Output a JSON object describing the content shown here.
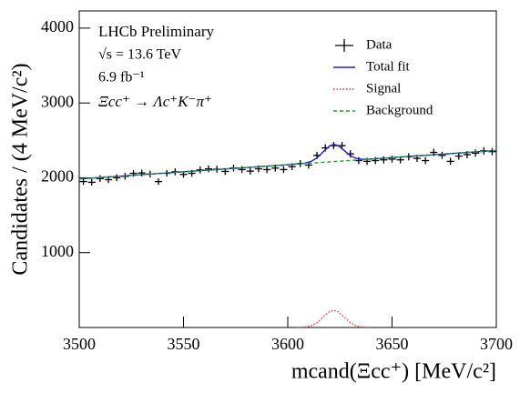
{
  "chart_data": {
    "type": "line",
    "annotations": [
      "LHCb Preliminary",
      "√s = 13.6 TeV",
      "6.9 fb⁻¹",
      "Ξcc⁺ → Λc⁺K⁻π⁺"
    ],
    "x_label": "mcand(Ξcc⁺) [MeV/c²]",
    "y_label": "Candidates / (4 MeV/c²)",
    "xlim": [
      3500,
      3700
    ],
    "xticks": [
      3500,
      3550,
      3600,
      3650,
      3700
    ],
    "ylim": [
      0,
      4230
    ],
    "yticks": [
      1000,
      2000,
      3000,
      4000
    ],
    "legend": "upper-right",
    "series": [
      {
        "name": "Data",
        "color": "#000000",
        "dash": "none",
        "x": [
          3502,
          3506,
          3510,
          3514,
          3518,
          3522,
          3526,
          3530,
          3534,
          3538,
          3542,
          3546,
          3550,
          3554,
          3558,
          3562,
          3566,
          3570,
          3574,
          3578,
          3582,
          3586,
          3590,
          3594,
          3598,
          3602,
          3606,
          3610,
          3614,
          3618,
          3622,
          3626,
          3630,
          3634,
          3638,
          3642,
          3646,
          3650,
          3654,
          3658,
          3662,
          3666,
          3670,
          3674,
          3678,
          3682,
          3686,
          3690,
          3694,
          3698
        ],
        "values": [
          1950,
          1940,
          1990,
          1975,
          2000,
          2020,
          2060,
          2065,
          2050,
          1950,
          2060,
          2080,
          2045,
          2060,
          2105,
          2120,
          2115,
          2085,
          2130,
          2110,
          2090,
          2120,
          2110,
          2130,
          2110,
          2150,
          2190,
          2170,
          2300,
          2400,
          2430,
          2430,
          2320,
          2230,
          2220,
          2230,
          2240,
          2250,
          2240,
          2280,
          2260,
          2230,
          2340,
          2300,
          2220,
          2290,
          2310,
          2330,
          2360,
          2350
        ],
        "errors": [
          44,
          44,
          45,
          44,
          45,
          45,
          45,
          45,
          45,
          44,
          45,
          46,
          45,
          45,
          46,
          46,
          46,
          46,
          46,
          46,
          46,
          46,
          46,
          46,
          46,
          46,
          47,
          47,
          48,
          49,
          49,
          49,
          48,
          47,
          47,
          47,
          47,
          47,
          47,
          48,
          48,
          47,
          48,
          48,
          47,
          48,
          48,
          48,
          49,
          48
        ]
      },
      {
        "name": "Total fit",
        "color": "#1f1fd0",
        "dash": "solid",
        "x": [
          3500,
          3600,
          3605,
          3608,
          3611,
          3614,
          3617,
          3620,
          3622,
          3624,
          3627,
          3630,
          3633,
          3636,
          3639,
          3700
        ],
        "values": [
          1985,
          2175,
          2186,
          2195,
          2216,
          2266,
          2347,
          2425,
          2447,
          2433,
          2366,
          2296,
          2258,
          2248,
          2250,
          2365
        ]
      },
      {
        "name": "Signal",
        "color": "#ff3030",
        "dash": "dotted",
        "x": [
          3605,
          3608,
          3611,
          3614,
          3617,
          3620,
          3622,
          3624,
          3627,
          3630,
          3633,
          3636,
          3639
        ],
        "values": [
          1,
          5,
          20,
          64,
          140,
          212,
          230,
          212,
          140,
          64,
          20,
          5,
          1
        ]
      },
      {
        "name": "Background",
        "color": "#22a022",
        "dash": "dashed",
        "x": [
          3500,
          3700
        ],
        "values": [
          1985,
          2365
        ]
      }
    ]
  }
}
